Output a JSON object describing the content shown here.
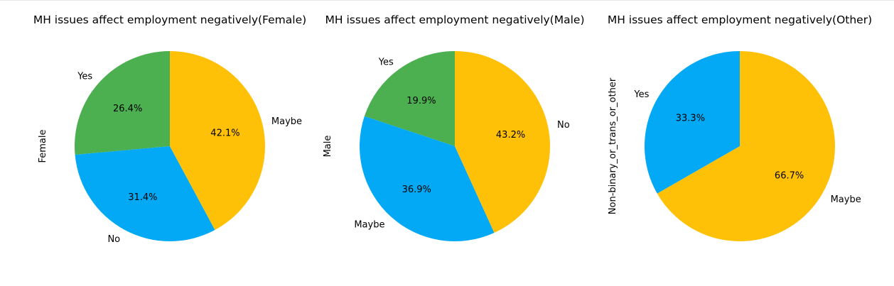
{
  "chart_data": [
    {
      "type": "pie",
      "title": "MH issues affect employment negatively(Female)",
      "ylabel": "Female",
      "slices": [
        {
          "label": "Yes",
          "value": 26.4,
          "pct_label": "26.4%",
          "color": "#4CAF50"
        },
        {
          "label": "No",
          "value": 31.4,
          "pct_label": "31.4%",
          "color": "#03A9F4"
        },
        {
          "label": "Maybe",
          "value": 42.1,
          "pct_label": "42.1%",
          "color": "#FFC107"
        }
      ]
    },
    {
      "type": "pie",
      "title": "MH issues affect employment negatively(Male)",
      "ylabel": "Male",
      "slices": [
        {
          "label": "Yes",
          "value": 19.9,
          "pct_label": "19.9%",
          "color": "#4CAF50"
        },
        {
          "label": "Maybe",
          "value": 36.9,
          "pct_label": "36.9%",
          "color": "#03A9F4"
        },
        {
          "label": "No",
          "value": 43.2,
          "pct_label": "43.2%",
          "color": "#FFC107"
        }
      ]
    },
    {
      "type": "pie",
      "title": "MH issues affect employment negatively(Other)",
      "ylabel": "Non-binary_or_trans_or_other",
      "slices": [
        {
          "label": "Yes",
          "value": 33.3,
          "pct_label": "33.3%",
          "color": "#03A9F4"
        },
        {
          "label": "Maybe",
          "value": 66.7,
          "pct_label": "66.7%",
          "color": "#FFC107"
        }
      ]
    }
  ]
}
